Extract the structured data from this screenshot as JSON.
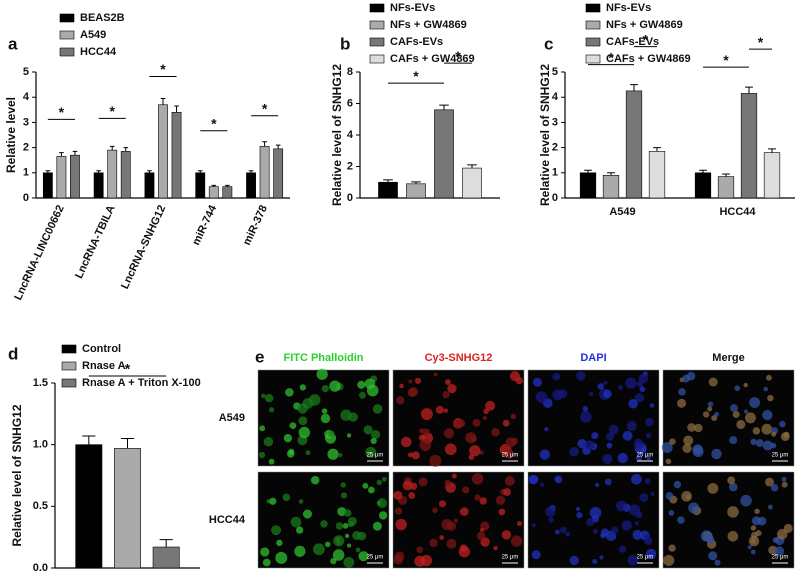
{
  "chart_data": [
    {
      "type": "bar",
      "label": "a",
      "ylabel": "Relative level",
      "categories": [
        "LncRNA-LINC00662",
        "LncRNA-TBILA",
        "LncRNA-SNHG12",
        "miR-744",
        "miR-378"
      ],
      "series": [
        {
          "name": "BEAS2B",
          "color": "#000000",
          "values": [
            1.0,
            1.0,
            1.0,
            1.0,
            1.0
          ],
          "errors": [
            0.08,
            0.08,
            0.08,
            0.08,
            0.08
          ]
        },
        {
          "name": "A549",
          "color": "#aaaaaa",
          "values": [
            1.65,
            1.9,
            3.7,
            0.45,
            2.05
          ],
          "errors": [
            0.15,
            0.15,
            0.25,
            0.05,
            0.18
          ]
        },
        {
          "name": "HCC44",
          "color": "#777777",
          "values": [
            1.7,
            1.85,
            3.4,
            0.45,
            1.95
          ],
          "errors": [
            0.15,
            0.15,
            0.25,
            0.05,
            0.15
          ]
        }
      ],
      "ylim": [
        0,
        5
      ],
      "yticks": [
        0,
        1,
        2,
        3,
        4,
        5
      ],
      "significance": [
        "*",
        "*",
        "*",
        "*",
        "*"
      ]
    },
    {
      "type": "bar",
      "label": "b",
      "ylabel": "Relative level of SNHG12",
      "categories": [
        null
      ],
      "series": [
        {
          "name": "NFs-EVs",
          "color": "#000000",
          "values": [
            1.0
          ],
          "errors": [
            0.15
          ]
        },
        {
          "name": "NFs + GW4869",
          "color": "#aaaaaa",
          "values": [
            0.9
          ],
          "errors": [
            0.12
          ]
        },
        {
          "name": "CAFs-EVs",
          "color": "#777777",
          "values": [
            5.6
          ],
          "errors": [
            0.3
          ]
        },
        {
          "name": "CAFs + GW4869",
          "color": "#dddddd",
          "values": [
            1.9
          ],
          "errors": [
            0.2
          ]
        }
      ],
      "ylim": [
        0,
        8
      ],
      "yticks": [
        0,
        2,
        4,
        6,
        8
      ],
      "significance": [
        "*",
        "*"
      ]
    },
    {
      "type": "bar",
      "label": "c",
      "ylabel": "Relative level of SNHG12",
      "categories": [
        "A549",
        "HCC44"
      ],
      "series": [
        {
          "name": "NFs-EVs",
          "color": "#000000",
          "values": [
            1.0,
            1.0
          ],
          "errors": [
            0.1,
            0.1
          ]
        },
        {
          "name": "NFs + GW4869",
          "color": "#aaaaaa",
          "values": [
            0.9,
            0.85
          ],
          "errors": [
            0.1,
            0.1
          ]
        },
        {
          "name": "CAFs-EVs",
          "color": "#777777",
          "values": [
            4.25,
            4.15
          ],
          "errors": [
            0.25,
            0.25
          ]
        },
        {
          "name": "CAFs + GW4869",
          "color": "#dddddd",
          "values": [
            1.85,
            1.8
          ],
          "errors": [
            0.15,
            0.15
          ]
        }
      ],
      "ylim": [
        0,
        5
      ],
      "yticks": [
        0,
        1,
        2,
        3,
        4,
        5
      ],
      "significance": [
        "*",
        "*",
        "*",
        "*"
      ]
    },
    {
      "type": "bar",
      "label": "d",
      "ylabel": "Relative level of SNHG12",
      "categories": [
        null
      ],
      "series": [
        {
          "name": "Control",
          "color": "#000000",
          "values": [
            1.0
          ],
          "errors": [
            0.07
          ]
        },
        {
          "name": "Rnase A",
          "color": "#aaaaaa",
          "values": [
            0.97
          ],
          "errors": [
            0.08
          ]
        },
        {
          "name": "Rnase A + Triton X-100",
          "color": "#777777",
          "values": [
            0.17
          ],
          "errors": [
            0.06
          ]
        }
      ],
      "ylim": [
        0,
        1.5
      ],
      "yticks": [
        {
          "value": 0,
          "label": "0.0"
        },
        0.5,
        {
          "value": 1,
          "label": "1.0"
        },
        1.5
      ],
      "significance": [
        "*"
      ]
    }
  ],
  "image_panel": {
    "label": "e",
    "columns": [
      "FITC Phalloidin",
      "Cy3-SNHG12",
      "DAPI",
      "Merge"
    ],
    "rows": [
      "A549",
      "HCC44"
    ],
    "scale_bar": "25 μm"
  }
}
